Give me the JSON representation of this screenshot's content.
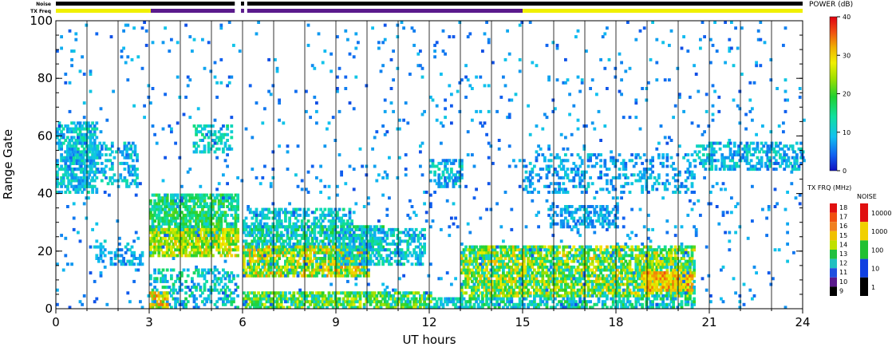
{
  "chart_data": {
    "type": "heatmap",
    "xlabel": "UT hours",
    "ylabel": "Range Gate",
    "xlim": [
      0,
      24
    ],
    "ylim": [
      0,
      100
    ],
    "xticks": [
      "0",
      "3",
      "6",
      "9",
      "12",
      "15",
      "18",
      "21",
      "24"
    ],
    "yticks": [
      "0",
      "20",
      "40",
      "60",
      "80",
      "100"
    ],
    "status_bars": {
      "noise_label": "Noise",
      "txfreq_label": "TX Freq",
      "noise_segments": [
        {
          "start": 0,
          "end": 5.75,
          "color": "#000000"
        },
        {
          "start": 5.95,
          "end": 6.05,
          "color": "#000000"
        },
        {
          "start": 6.15,
          "end": 24,
          "color": "#000000"
        }
      ],
      "txfreq_segments": [
        {
          "start": 0,
          "end": 3.05,
          "color": "#f0f000"
        },
        {
          "start": 3.05,
          "end": 5.75,
          "color": "#5a1a8c"
        },
        {
          "start": 5.95,
          "end": 6.05,
          "color": "#5a1a8c"
        },
        {
          "start": 6.15,
          "end": 15.0,
          "color": "#5a1a8c"
        },
        {
          "start": 15.0,
          "end": 24,
          "color": "#f0f000"
        }
      ]
    },
    "power_colorbar": {
      "title": "POWER (dB)",
      "ticks": [
        "0",
        "10",
        "20",
        "30",
        "40"
      ],
      "range": [
        0,
        40
      ]
    },
    "txfreq_scale": {
      "title": "TX FRQ (MHz)",
      "labels": [
        "18",
        "17",
        "16",
        "15",
        "14",
        "13",
        "12",
        "11",
        "10",
        "9"
      ],
      "colors": [
        "#e01010",
        "#f05010",
        "#f08020",
        "#f0c000",
        "#c0e000",
        "#20c040",
        "#20c0c0",
        "#2050e0",
        "#5a1a8c",
        "#000000"
      ]
    },
    "noise_scale": {
      "title": "NOISE",
      "labels": [
        "10000",
        "1000",
        "100",
        "10",
        "1"
      ],
      "colors": [
        "#e01010",
        "#f0d000",
        "#20c030",
        "#1040e0",
        "#000000"
      ]
    },
    "scatter_bands": [
      {
        "x0": 0.0,
        "x1": 1.3,
        "y0": 40,
        "y1": 65,
        "p": 0.55,
        "pmin": 5,
        "pmax": 15
      },
      {
        "x0": 0.3,
        "x1": 2.6,
        "y0": 42,
        "y1": 58,
        "p": 0.35,
        "pmin": 4,
        "pmax": 14
      },
      {
        "x0": 1.2,
        "x1": 2.8,
        "y0": 15,
        "y1": 24,
        "p": 0.3,
        "pmin": 4,
        "pmax": 12
      },
      {
        "x0": 3.0,
        "x1": 5.8,
        "y0": 26,
        "y1": 40,
        "p": 0.7,
        "pmin": 10,
        "pmax": 22
      },
      {
        "x0": 3.0,
        "x1": 5.8,
        "y0": 18,
        "y1": 28,
        "p": 0.8,
        "pmin": 18,
        "pmax": 32
      },
      {
        "x0": 3.0,
        "x1": 5.8,
        "y0": 0,
        "y1": 14,
        "p": 0.35,
        "pmin": 5,
        "pmax": 18
      },
      {
        "x0": 3.0,
        "x1": 3.6,
        "y0": 0,
        "y1": 6,
        "p": 0.8,
        "pmin": 20,
        "pmax": 35
      },
      {
        "x0": 4.4,
        "x1": 5.6,
        "y0": 54,
        "y1": 64,
        "p": 0.4,
        "pmin": 8,
        "pmax": 16
      },
      {
        "x0": 6.0,
        "x1": 9.5,
        "y0": 28,
        "y1": 35,
        "p": 0.5,
        "pmin": 6,
        "pmax": 16
      },
      {
        "x0": 6.0,
        "x1": 10.5,
        "y0": 20,
        "y1": 29,
        "p": 0.65,
        "pmin": 6,
        "pmax": 20
      },
      {
        "x0": 6.0,
        "x1": 10.0,
        "y0": 11,
        "y1": 22,
        "p": 0.8,
        "pmin": 14,
        "pmax": 34
      },
      {
        "x0": 6.0,
        "x1": 12.0,
        "y0": 0,
        "y1": 6,
        "p": 0.75,
        "pmin": 10,
        "pmax": 28
      },
      {
        "x0": 9.0,
        "x1": 11.8,
        "y0": 15,
        "y1": 28,
        "p": 0.55,
        "pmin": 5,
        "pmax": 16
      },
      {
        "x0": 12.0,
        "x1": 13.0,
        "y0": 0,
        "y1": 4,
        "p": 0.6,
        "pmin": 6,
        "pmax": 16
      },
      {
        "x0": 12.0,
        "x1": 13.0,
        "y0": 42,
        "y1": 52,
        "p": 0.5,
        "pmin": 4,
        "pmax": 14
      },
      {
        "x0": 13.0,
        "x1": 20.5,
        "y0": 4,
        "y1": 22,
        "p": 0.75,
        "pmin": 10,
        "pmax": 32
      },
      {
        "x0": 13.0,
        "x1": 20.5,
        "y0": 0,
        "y1": 4,
        "p": 0.6,
        "pmin": 6,
        "pmax": 20
      },
      {
        "x0": 15.8,
        "x1": 18.0,
        "y0": 28,
        "y1": 36,
        "p": 0.5,
        "pmin": 4,
        "pmax": 12
      },
      {
        "x0": 15.0,
        "x1": 20.5,
        "y0": 40,
        "y1": 54,
        "p": 0.25,
        "pmin": 4,
        "pmax": 12
      },
      {
        "x0": 20.5,
        "x1": 24.0,
        "y0": 48,
        "y1": 58,
        "p": 0.45,
        "pmin": 4,
        "pmax": 14
      },
      {
        "x0": 18.8,
        "x1": 20.4,
        "y0": 6,
        "y1": 13,
        "p": 0.8,
        "pmin": 26,
        "pmax": 36
      },
      {
        "x0": 0.0,
        "x1": 24.0,
        "y0": 0,
        "y1": 100,
        "p": 0.03,
        "pmin": 3,
        "pmax": 10
      }
    ]
  }
}
